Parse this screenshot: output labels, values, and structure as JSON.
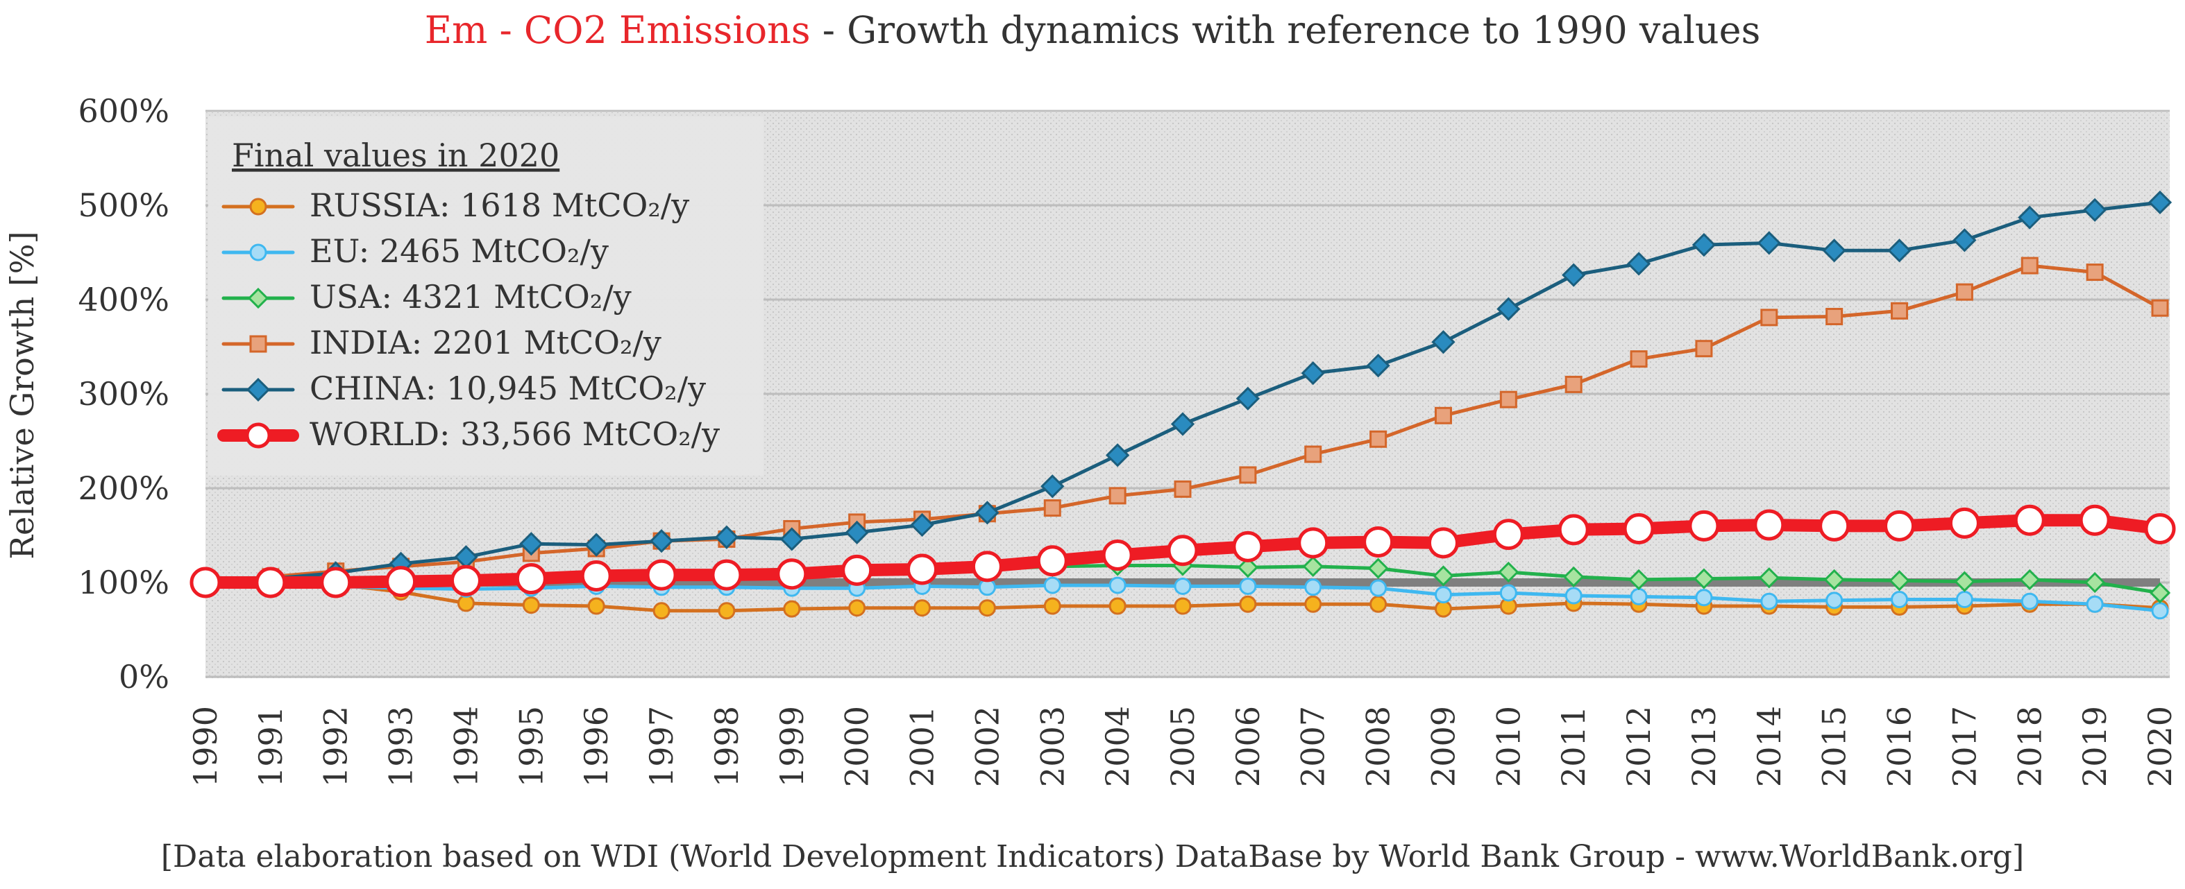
{
  "title": {
    "highlight": "Em - CO2 Emissions",
    "rest": " - Growth dynamics with reference to 1990 values",
    "highlight_color": "#e8262b"
  },
  "footer": "[Data elaboration based on WDI (World Development Indicators) DataBase by World Bank Group - www.WorldBank.org]",
  "legend": {
    "title": "Final values in 2020",
    "placement": "top-left"
  },
  "chart_data": {
    "type": "line",
    "ylabel": "Relative Growth [%]",
    "xlabel": "",
    "ylim": [
      0,
      600
    ],
    "yticks": [
      "0%",
      "100%",
      "200%",
      "300%",
      "400%",
      "500%",
      "600%"
    ],
    "grid": true,
    "reference_line": 100,
    "x": [
      1990,
      1991,
      1992,
      1993,
      1994,
      1995,
      1996,
      1997,
      1998,
      1999,
      2000,
      2001,
      2002,
      2003,
      2004,
      2005,
      2006,
      2007,
      2008,
      2009,
      2010,
      2011,
      2012,
      2013,
      2014,
      2015,
      2016,
      2017,
      2018,
      2019,
      2020
    ],
    "series": [
      {
        "name": "RUSSIA: 1618 MtCO₂/y",
        "color": "#d4701f",
        "marker": "circle",
        "marker_fill": "#f5b21e",
        "values": [
          100,
          99,
          98,
          90,
          78,
          76,
          75,
          70,
          70,
          72,
          73,
          73,
          73,
          75,
          75,
          75,
          77,
          77,
          77,
          72,
          75,
          78,
          77,
          75,
          75,
          74,
          74,
          75,
          77,
          77,
          73
        ]
      },
      {
        "name": "EU: 2465 MtCO₂/y",
        "color": "#3fb8f0",
        "marker": "circle",
        "marker_fill": "#a6dcf6",
        "values": [
          100,
          98,
          96,
          94,
          93,
          94,
          96,
          95,
          95,
          94,
          94,
          96,
          95,
          97,
          97,
          96,
          96,
          95,
          94,
          87,
          89,
          86,
          85,
          84,
          80,
          81,
          82,
          82,
          80,
          77,
          70
        ]
      },
      {
        "name": "USA: 4321 MtCO₂/y",
        "color": "#22b14c",
        "marker": "diamond",
        "marker_fill": "#a7e3a0",
        "values": [
          100,
          99,
          101,
          103,
          106,
          107,
          110,
          111,
          112,
          114,
          116,
          114,
          114,
          117,
          118,
          118,
          116,
          117,
          115,
          107,
          111,
          106,
          103,
          104,
          105,
          103,
          102,
          101,
          103,
          100,
          89
        ]
      },
      {
        "name": "INDIA: 2201 MtCO₂/y",
        "color": "#d4662a",
        "marker": "square",
        "marker_fill": "#e8a27c",
        "values": [
          100,
          106,
          112,
          117,
          122,
          131,
          136,
          144,
          146,
          157,
          164,
          167,
          173,
          179,
          192,
          199,
          214,
          236,
          252,
          277,
          294,
          310,
          337,
          348,
          381,
          382,
          388,
          408,
          436,
          429,
          391
        ]
      },
      {
        "name": "CHINA: 10,945 MtCO₂/y",
        "color": "#1b5e7d",
        "marker": "diamond",
        "marker_fill": "#2a8bbf",
        "values": [
          100,
          104,
          110,
          120,
          127,
          141,
          140,
          144,
          148,
          146,
          153,
          161,
          174,
          202,
          235,
          268,
          295,
          322,
          330,
          355,
          390,
          426,
          438,
          458,
          460,
          452,
          452,
          463,
          487,
          495,
          503
        ]
      },
      {
        "name": "WORLD: 33,566 MtCO₂/y",
        "color": "#ee1c24",
        "marker": "circle",
        "marker_fill": "#ffffff",
        "values": [
          100,
          100,
          100,
          101,
          102,
          104,
          107,
          108,
          108,
          109,
          113,
          114,
          117,
          123,
          129,
          134,
          138,
          142,
          143,
          142,
          151,
          156,
          157,
          160,
          161,
          160,
          160,
          163,
          166,
          166,
          157
        ]
      }
    ]
  }
}
